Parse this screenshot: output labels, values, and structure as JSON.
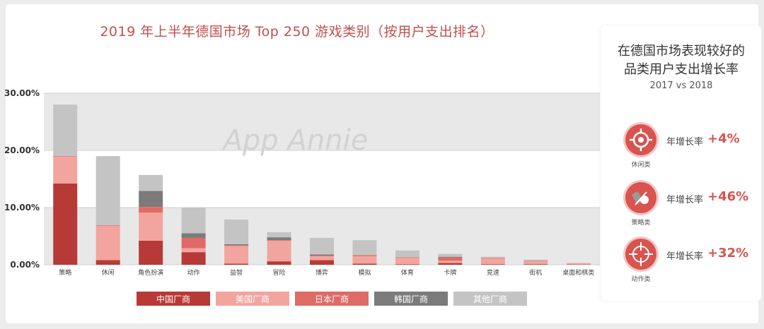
{
  "title": "2019 年上半年德国市场 Top 250 游戏类别（按用户支出排名）",
  "watermark": "App Annie",
  "chart_data": {
    "type": "bar",
    "stacked": true,
    "title": "2019 年上半年德国市场 Top 250 游戏类别（按用户支出排名）",
    "categories": [
      "策略",
      "休闲",
      "角色扮演",
      "动作",
      "益智",
      "冒险",
      "博弈",
      "模拟",
      "体育",
      "卡牌",
      "竞速",
      "街机",
      "桌面和棋类"
    ],
    "yticks": [
      "0.00%",
      "10.00%",
      "20.00%",
      "30.00%"
    ],
    "ylim": [
      0,
      30
    ],
    "grid": true,
    "legend_position": "bottom",
    "series": [
      {
        "name": "中国厂商",
        "color": "#b83a36",
        "values": [
          14.2,
          0.8,
          4.2,
          2.2,
          0.2,
          0.6,
          0.8,
          0.2,
          0.1,
          0.3,
          0.1,
          0.1,
          0.05
        ]
      },
      {
        "name": "美国厂商",
        "color": "#f2a59f",
        "values": [
          4.7,
          6.0,
          4.9,
          0.7,
          3.1,
          3.6,
          0.7,
          1.3,
          1.1,
          0.4,
          1.0,
          0.5,
          0.25
        ]
      },
      {
        "name": "日本厂商",
        "color": "#e06b66",
        "values": [
          0.1,
          0.1,
          1.0,
          1.8,
          0.1,
          0.1,
          0.1,
          0.2,
          0.1,
          0.6,
          0.1,
          0.1,
          0.0
        ]
      },
      {
        "name": "韩国厂商",
        "color": "#7b7b7b",
        "values": [
          0.0,
          0.0,
          2.8,
          0.8,
          0.2,
          0.5,
          0.2,
          0.0,
          0.0,
          0.1,
          0.0,
          0.0,
          0.0
        ]
      },
      {
        "name": "其他厂商",
        "color": "#c4c4c4",
        "values": [
          9.0,
          12.1,
          2.8,
          4.5,
          4.3,
          0.9,
          2.9,
          2.6,
          1.2,
          0.5,
          0.2,
          0.2,
          0.0
        ]
      }
    ]
  },
  "side": {
    "title_line1": "在德国市场表现较好的",
    "title_line2": "品类用户支出增长率",
    "subtitle": "2017 vs 2018",
    "metrics": [
      {
        "category": "休闲类",
        "label": "年增长率",
        "value": "+4%",
        "icon": "casual-icon"
      },
      {
        "category": "策略类",
        "label": "年增长率",
        "value": "+46%",
        "icon": "strategy-icon"
      },
      {
        "category": "动作类",
        "label": "年增长率",
        "value": "+32%",
        "icon": "action-icon"
      }
    ]
  }
}
